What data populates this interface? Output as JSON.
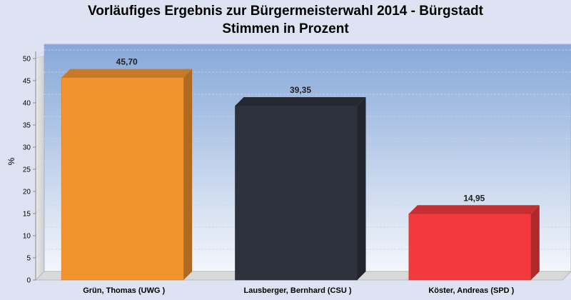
{
  "chart_data": {
    "type": "bar",
    "title": "Vorläufiges Ergebnis zur Bürgermeisterwahl 2014 - Bürgstadt",
    "subtitle": "Stimmen in Prozent",
    "ylabel": "%",
    "xlabel": "",
    "ylim": [
      0,
      50
    ],
    "yticks": [
      0,
      5,
      10,
      15,
      20,
      25,
      30,
      35,
      40,
      45,
      50
    ],
    "grid": true,
    "categories": [
      "Grün, Thomas (UWG )",
      "Lausberger, Bernhard (CSU )",
      "Köster, Andreas (SPD )"
    ],
    "values": [
      45.7,
      39.35,
      14.95
    ],
    "value_labels": [
      "45,70",
      "39,35",
      "14,95"
    ],
    "colors": [
      "#f3932f",
      "#2e323d",
      "#f2393c"
    ]
  }
}
